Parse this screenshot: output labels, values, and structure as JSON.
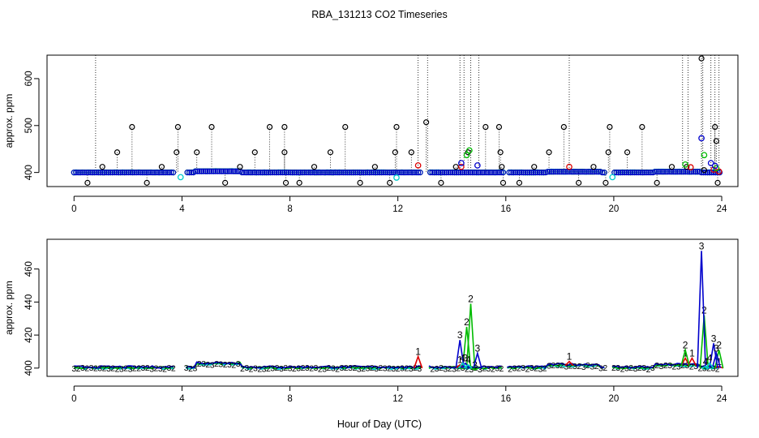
{
  "title": "RBA_131213  CO2 Timeseries",
  "xlabel": "Hour of Day (UTC)",
  "colors": {
    "series0": "#000000",
    "series1": "#dd0000",
    "series2": "#00bb00",
    "series3": "#0000cc",
    "series4": "#00cccc"
  },
  "chart_data": [
    {
      "type": "scatter",
      "panel": "top",
      "title": "RBA_131213  CO2 Timeseries",
      "ylabel": "approx. ppm",
      "xlim": [
        -1.0,
        24.6
      ],
      "ylim": [
        370,
        650
      ],
      "xticks": [
        0,
        4,
        8,
        12,
        16,
        20,
        24
      ],
      "yticks": [
        400,
        500,
        600
      ],
      "baseline": 400,
      "gaps": [
        [
          3.75,
          4.15
        ],
        [
          12.85,
          13.15
        ],
        [
          15.9,
          16.05
        ],
        [
          19.7,
          19.95
        ]
      ],
      "spikes": [
        {
          "x": 0.5,
          "y": 378
        },
        {
          "x": 1.05,
          "y": 412
        },
        {
          "x": 1.6,
          "y": 443
        },
        {
          "x": 2.15,
          "y": 497
        },
        {
          "x": 2.7,
          "y": 378
        },
        {
          "x": 3.25,
          "y": 412
        },
        {
          "x": 3.8,
          "y": 443
        },
        {
          "x": 3.85,
          "y": 497
        },
        {
          "x": 4.55,
          "y": 443
        },
        {
          "x": 5.1,
          "y": 497
        },
        {
          "x": 5.6,
          "y": 378
        },
        {
          "x": 6.15,
          "y": 412
        },
        {
          "x": 6.7,
          "y": 443
        },
        {
          "x": 7.25,
          "y": 497
        },
        {
          "x": 7.8,
          "y": 497
        },
        {
          "x": 7.8,
          "y": 443
        },
        {
          "x": 7.85,
          "y": 378
        },
        {
          "x": 8.35,
          "y": 378
        },
        {
          "x": 8.9,
          "y": 412
        },
        {
          "x": 9.5,
          "y": 443
        },
        {
          "x": 10.05,
          "y": 497
        },
        {
          "x": 10.6,
          "y": 378
        },
        {
          "x": 11.15,
          "y": 412
        },
        {
          "x": 11.7,
          "y": 378
        },
        {
          "x": 11.9,
          "y": 443
        },
        {
          "x": 11.95,
          "y": 497
        },
        {
          "x": 12.5,
          "y": 443
        },
        {
          "x": 13.05,
          "y": 507
        },
        {
          "x": 13.6,
          "y": 378
        },
        {
          "x": 14.15,
          "y": 412
        },
        {
          "x": 14.6,
          "y": 443
        },
        {
          "x": 15.25,
          "y": 497
        },
        {
          "x": 15.75,
          "y": 497
        },
        {
          "x": 15.8,
          "y": 443
        },
        {
          "x": 15.85,
          "y": 412
        },
        {
          "x": 15.9,
          "y": 378
        },
        {
          "x": 16.5,
          "y": 378
        },
        {
          "x": 17.05,
          "y": 412
        },
        {
          "x": 17.6,
          "y": 443
        },
        {
          "x": 18.15,
          "y": 497
        },
        {
          "x": 18.7,
          "y": 378
        },
        {
          "x": 19.25,
          "y": 412
        },
        {
          "x": 19.7,
          "y": 378
        },
        {
          "x": 19.8,
          "y": 443
        },
        {
          "x": 19.85,
          "y": 497
        },
        {
          "x": 20.5,
          "y": 443
        },
        {
          "x": 21.05,
          "y": 497
        },
        {
          "x": 21.6,
          "y": 378
        },
        {
          "x": 22.15,
          "y": 412
        },
        {
          "x": 22.7,
          "y": 412
        },
        {
          "x": 23.25,
          "y": 643
        },
        {
          "x": 23.35,
          "y": 405
        },
        {
          "x": 23.75,
          "y": 497
        },
        {
          "x": 23.8,
          "y": 467
        },
        {
          "x": 23.85,
          "y": 378
        }
      ],
      "series": [
        {
          "name": "1",
          "color": "#dd0000",
          "points": [
            [
              12.75,
              415
            ],
            [
              14.35,
              412
            ],
            [
              18.35,
              412
            ],
            [
              22.85,
              411
            ],
            [
              23.7,
              406
            ],
            [
              23.9,
              402
            ]
          ]
        },
        {
          "name": "2",
          "color": "#00bb00",
          "points": [
            [
              14.55,
              437
            ],
            [
              14.65,
              447
            ],
            [
              22.65,
              417
            ],
            [
              23.35,
              437
            ],
            [
              23.8,
              409
            ]
          ]
        },
        {
          "name": "3",
          "color": "#0000cc",
          "points": [
            [
              14.35,
              420
            ],
            [
              14.95,
              415
            ],
            [
              23.25,
              473
            ],
            [
              23.6,
              420
            ],
            [
              23.75,
              414
            ]
          ]
        },
        {
          "name": "4",
          "color": "#00cccc",
          "points": [
            [
              3.95,
              390
            ],
            [
              11.95,
              389
            ],
            [
              19.95,
              390
            ]
          ]
        }
      ],
      "tall_lines": [
        0.8,
        12.75,
        13.1,
        14.3,
        14.45,
        14.7,
        15.0,
        18.35,
        22.55,
        22.75,
        23.3,
        23.6,
        23.75,
        23.9
      ]
    },
    {
      "type": "line",
      "panel": "bottom",
      "ylabel": "approx. ppm",
      "xlim": [
        -1.0,
        24.6
      ],
      "ylim": [
        395,
        478
      ],
      "xticks": [
        0,
        4,
        8,
        12,
        16,
        20,
        24
      ],
      "yticks": [
        400,
        420,
        440,
        460
      ],
      "gaps": [
        [
          3.75,
          4.15
        ],
        [
          12.85,
          13.15
        ],
        [
          15.9,
          16.05
        ],
        [
          19.7,
          19.95
        ]
      ],
      "series": [
        {
          "name": "1",
          "color": "#dd0000",
          "points": [
            [
              12.75,
              407
            ],
            [
              14.3,
              402
            ],
            [
              18.35,
              404
            ],
            [
              22.65,
              406
            ],
            [
              22.9,
              406
            ],
            [
              23.9,
              401
            ]
          ]
        },
        {
          "name": "2",
          "color": "#00bb00",
          "points": [
            [
              14.55,
              425
            ],
            [
              14.7,
              439
            ],
            [
              14.85,
              399
            ],
            [
              22.65,
              411
            ],
            [
              23.35,
              432
            ],
            [
              23.9,
              411
            ]
          ]
        },
        {
          "name": "3",
          "color": "#0000cc",
          "points": [
            [
              14.3,
              417
            ],
            [
              14.5,
              403
            ],
            [
              14.95,
              409
            ],
            [
              23.25,
              471
            ],
            [
              23.7,
              415
            ],
            [
              23.8,
              409
            ]
          ]
        },
        {
          "name": "4",
          "color": "#00cccc",
          "points": [
            [
              14.4,
              403
            ],
            [
              14.6,
              402
            ],
            [
              23.4,
              401
            ],
            [
              23.55,
              403
            ]
          ]
        }
      ]
    }
  ]
}
